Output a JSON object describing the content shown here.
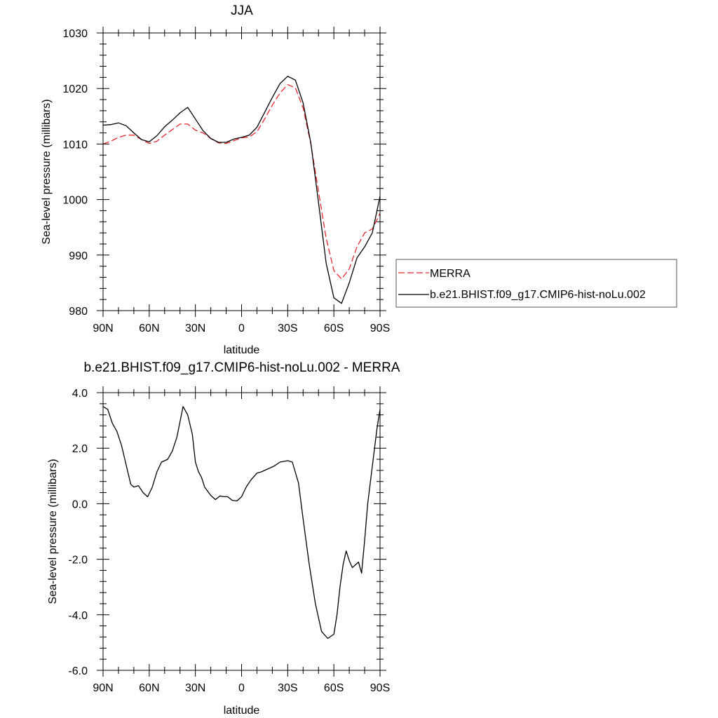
{
  "chart_data": [
    {
      "type": "line",
      "title": "JJA",
      "xlabel": "latitude",
      "ylabel": "Sea-level pressure (millibars)",
      "xlim": [
        90,
        -90
      ],
      "ylim": [
        980,
        1030
      ],
      "x_ticks": [
        90,
        60,
        30,
        0,
        -30,
        -60,
        -90
      ],
      "x_tick_labels": [
        "90N",
        "60N",
        "30N",
        "0",
        "30S",
        "60S",
        "90S"
      ],
      "y_ticks": [
        980,
        990,
        1000,
        1010,
        1020,
        1030
      ],
      "y_tick_labels": [
        "980",
        "990",
        "1000",
        "1010",
        "1020",
        "1030"
      ],
      "legend_position": "right",
      "series": [
        {
          "name": "MERRA",
          "color": "#e8262b",
          "style": "dashed",
          "x": [
            90,
            85,
            80,
            75,
            70,
            65,
            60,
            55,
            50,
            45,
            40,
            35,
            30,
            25,
            20,
            15,
            10,
            5,
            0,
            -5,
            -10,
            -15,
            -20,
            -25,
            -30,
            -35,
            -40,
            -45,
            -50,
            -55,
            -60,
            -65,
            -70,
            -75,
            -80,
            -85,
            -90
          ],
          "values": [
            1010.0,
            1010.5,
            1011.2,
            1011.6,
            1011.6,
            1010.8,
            1010.1,
            1010.5,
            1011.6,
            1012.6,
            1013.6,
            1013.6,
            1012.5,
            1012.0,
            1011.0,
            1010.2,
            1010.1,
            1010.6,
            1011.1,
            1011.3,
            1012.2,
            1014.5,
            1017.0,
            1019.2,
            1020.7,
            1020.1,
            1016.5,
            1010.0,
            1001.5,
            993.0,
            987.2,
            985.7,
            987.5,
            991.5,
            994.0,
            994.7,
            997.5
          ]
        },
        {
          "name": "b.e21.BHIST.f09_g17.CMIP6-hist-noLu.002",
          "color": "#000000",
          "style": "solid",
          "x": [
            90,
            85,
            80,
            75,
            70,
            65,
            60,
            55,
            50,
            45,
            40,
            35,
            30,
            25,
            20,
            15,
            10,
            5,
            0,
            -5,
            -10,
            -15,
            -20,
            -25,
            -30,
            -35,
            -40,
            -45,
            -50,
            -55,
            -60,
            -65,
            -70,
            -75,
            -80,
            -85,
            -90
          ],
          "values": [
            1013.4,
            1013.5,
            1013.8,
            1013.3,
            1012.0,
            1010.8,
            1010.4,
            1011.5,
            1013.1,
            1014.3,
            1015.6,
            1016.6,
            1014.5,
            1012.4,
            1011.0,
            1010.3,
            1010.3,
            1010.9,
            1011.2,
            1011.6,
            1013.0,
            1015.7,
            1018.4,
            1020.9,
            1022.2,
            1021.5,
            1017.4,
            1010.2,
            999.5,
            988.5,
            982.3,
            981.3,
            985.0,
            989.5,
            991.5,
            994.0,
            1000.6
          ]
        }
      ]
    },
    {
      "type": "line",
      "title": "b.e21.BHIST.f09_g17.CMIP6-hist-noLu.002 - MERRA",
      "xlabel": "latitude",
      "ylabel": "Sea-level pressure (millibars)",
      "xlim": [
        90,
        -90
      ],
      "ylim": [
        -6.0,
        4.0
      ],
      "x_ticks": [
        90,
        60,
        30,
        0,
        -30,
        -60,
        -90
      ],
      "x_tick_labels": [
        "90N",
        "60N",
        "30N",
        "0",
        "30S",
        "60S",
        "90S"
      ],
      "y_ticks": [
        -6.0,
        -4.0,
        -2.0,
        0.0,
        2.0,
        4.0
      ],
      "y_tick_labels": [
        "-6.0",
        "-4.0",
        "-2.0",
        "0.0",
        "2.0",
        "4.0"
      ],
      "series": [
        {
          "color": "#000000",
          "style": "solid",
          "x": [
            90,
            87,
            84,
            81,
            78,
            75,
            72,
            70,
            67,
            64,
            61,
            58,
            55,
            52,
            48,
            45,
            42,
            38,
            35,
            32,
            30,
            28,
            26,
            24,
            20,
            17,
            14,
            12,
            9,
            6,
            3,
            0,
            -3,
            -6,
            -10,
            -13,
            -17,
            -21,
            -25,
            -30,
            -33,
            -37,
            -40,
            -44,
            -48,
            -52,
            -56,
            -60,
            -62,
            -64,
            -66,
            -68,
            -70,
            -72,
            -74,
            -76,
            -78,
            -80,
            -82,
            -84,
            -86,
            -88,
            -90
          ],
          "values": [
            3.5,
            3.4,
            2.9,
            2.6,
            2.1,
            1.4,
            0.7,
            0.6,
            0.65,
            0.4,
            0.25,
            0.6,
            1.15,
            1.5,
            1.6,
            1.9,
            2.4,
            3.5,
            3.2,
            2.5,
            1.5,
            1.15,
            0.95,
            0.6,
            0.3,
            0.15,
            0.28,
            0.26,
            0.25,
            0.12,
            0.1,
            0.25,
            0.6,
            0.85,
            1.1,
            1.15,
            1.25,
            1.35,
            1.5,
            1.55,
            1.5,
            0.75,
            -0.55,
            -2.2,
            -3.6,
            -4.6,
            -4.85,
            -4.7,
            -4.0,
            -3.0,
            -2.2,
            -1.7,
            -2.05,
            -2.3,
            -2.2,
            -2.1,
            -2.5,
            -1.3,
            0.0,
            0.9,
            1.8,
            2.7,
            3.4
          ]
        }
      ]
    }
  ]
}
